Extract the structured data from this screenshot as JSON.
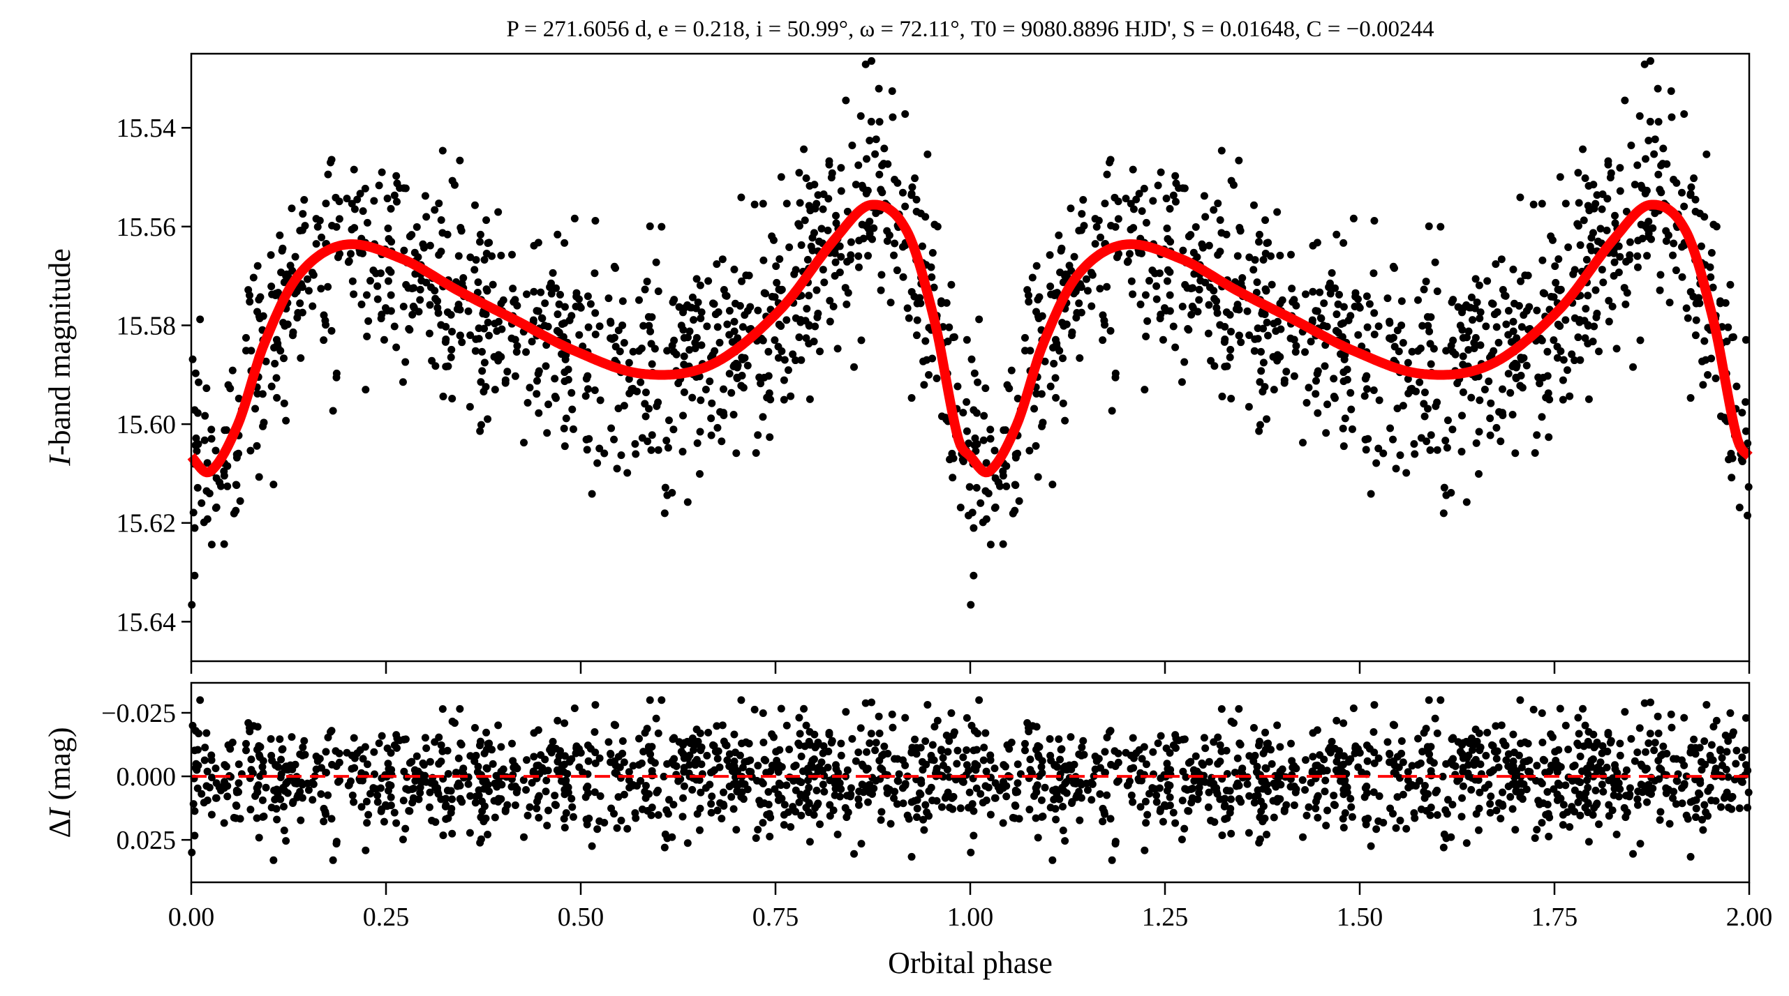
{
  "chart_data": [
    {
      "type": "scatter",
      "panel": "light-curve",
      "title": "P = 271.6056 d, e = 0.218, i = 50.99°, ω = 72.11°, T0 = 9080.8896 HJD', S = 0.01648, C = −0.00244",
      "title_parts": {
        "P": "271.6056 d",
        "e": "0.218",
        "i": "50.99°",
        "omega": "72.11°",
        "T0": "9080.8896 HJD'",
        "S": "0.01648",
        "C": "−0.00244"
      },
      "xlabel": "Orbital phase",
      "ylabel": "I-band magnitude",
      "ylabel_italic": "I",
      "ylabel_rest": "-band magnitude",
      "xlim": [
        0,
        2
      ],
      "ylim": [
        15.648,
        15.525
      ],
      "yticks": [
        "15.54",
        "15.56",
        "15.58",
        "15.60",
        "15.62",
        "15.64"
      ],
      "ytick_values": [
        15.54,
        15.56,
        15.58,
        15.6,
        15.62,
        15.64
      ],
      "xtick_values": [
        0,
        0.25,
        0.5,
        0.75,
        1.0,
        1.25,
        1.5,
        1.75,
        2.0
      ],
      "series": [
        {
          "name": "observations",
          "kind": "points",
          "color": "#000000",
          "n_per_cycle": 1000,
          "scatter_sigma_mag": 0.011,
          "repeated_over_two_cycles": true
        },
        {
          "name": "model",
          "kind": "line",
          "color": "#ff0000",
          "phase": [
            0.0,
            0.024,
            0.06,
            0.093,
            0.137,
            0.196,
            0.27,
            0.343,
            0.417,
            0.49,
            0.579,
            0.667,
            0.755,
            0.829,
            0.873,
            0.918,
            0.954,
            0.984,
            1.0
          ],
          "mag": [
            15.6065,
            15.6096,
            15.6,
            15.584,
            15.57,
            15.5637,
            15.5665,
            15.573,
            15.579,
            15.585,
            15.5898,
            15.588,
            15.577,
            15.562,
            15.5556,
            15.5607,
            15.579,
            15.6026,
            15.6065
          ]
        }
      ]
    },
    {
      "type": "scatter",
      "panel": "residuals",
      "xlabel": "Orbital phase",
      "ylabel": "ΔI (mag)",
      "ylabel_delta": "Δ",
      "ylabel_italic": "I",
      "ylabel_rest": " (mag)",
      "xlim": [
        0,
        2
      ],
      "ylim": [
        -0.0368,
        0.0417
      ],
      "yticks": [
        "−0.025",
        "0.000",
        "0.025"
      ],
      "ytick_values": [
        -0.025,
        0,
        0.025
      ],
      "xticks": [
        "0.00",
        "0.25",
        "0.50",
        "0.75",
        "1.00",
        "1.25",
        "1.50",
        "1.75",
        "2.00"
      ],
      "xtick_values": [
        0,
        0.25,
        0.5,
        0.75,
        1.0,
        1.25,
        1.5,
        1.75,
        2.0
      ],
      "zero_line": {
        "value": 0,
        "color": "#ff0000",
        "style": "dashed"
      },
      "series": [
        {
          "name": "residuals",
          "color": "#000000",
          "scatter_sigma_mag": 0.011
        }
      ]
    }
  ]
}
